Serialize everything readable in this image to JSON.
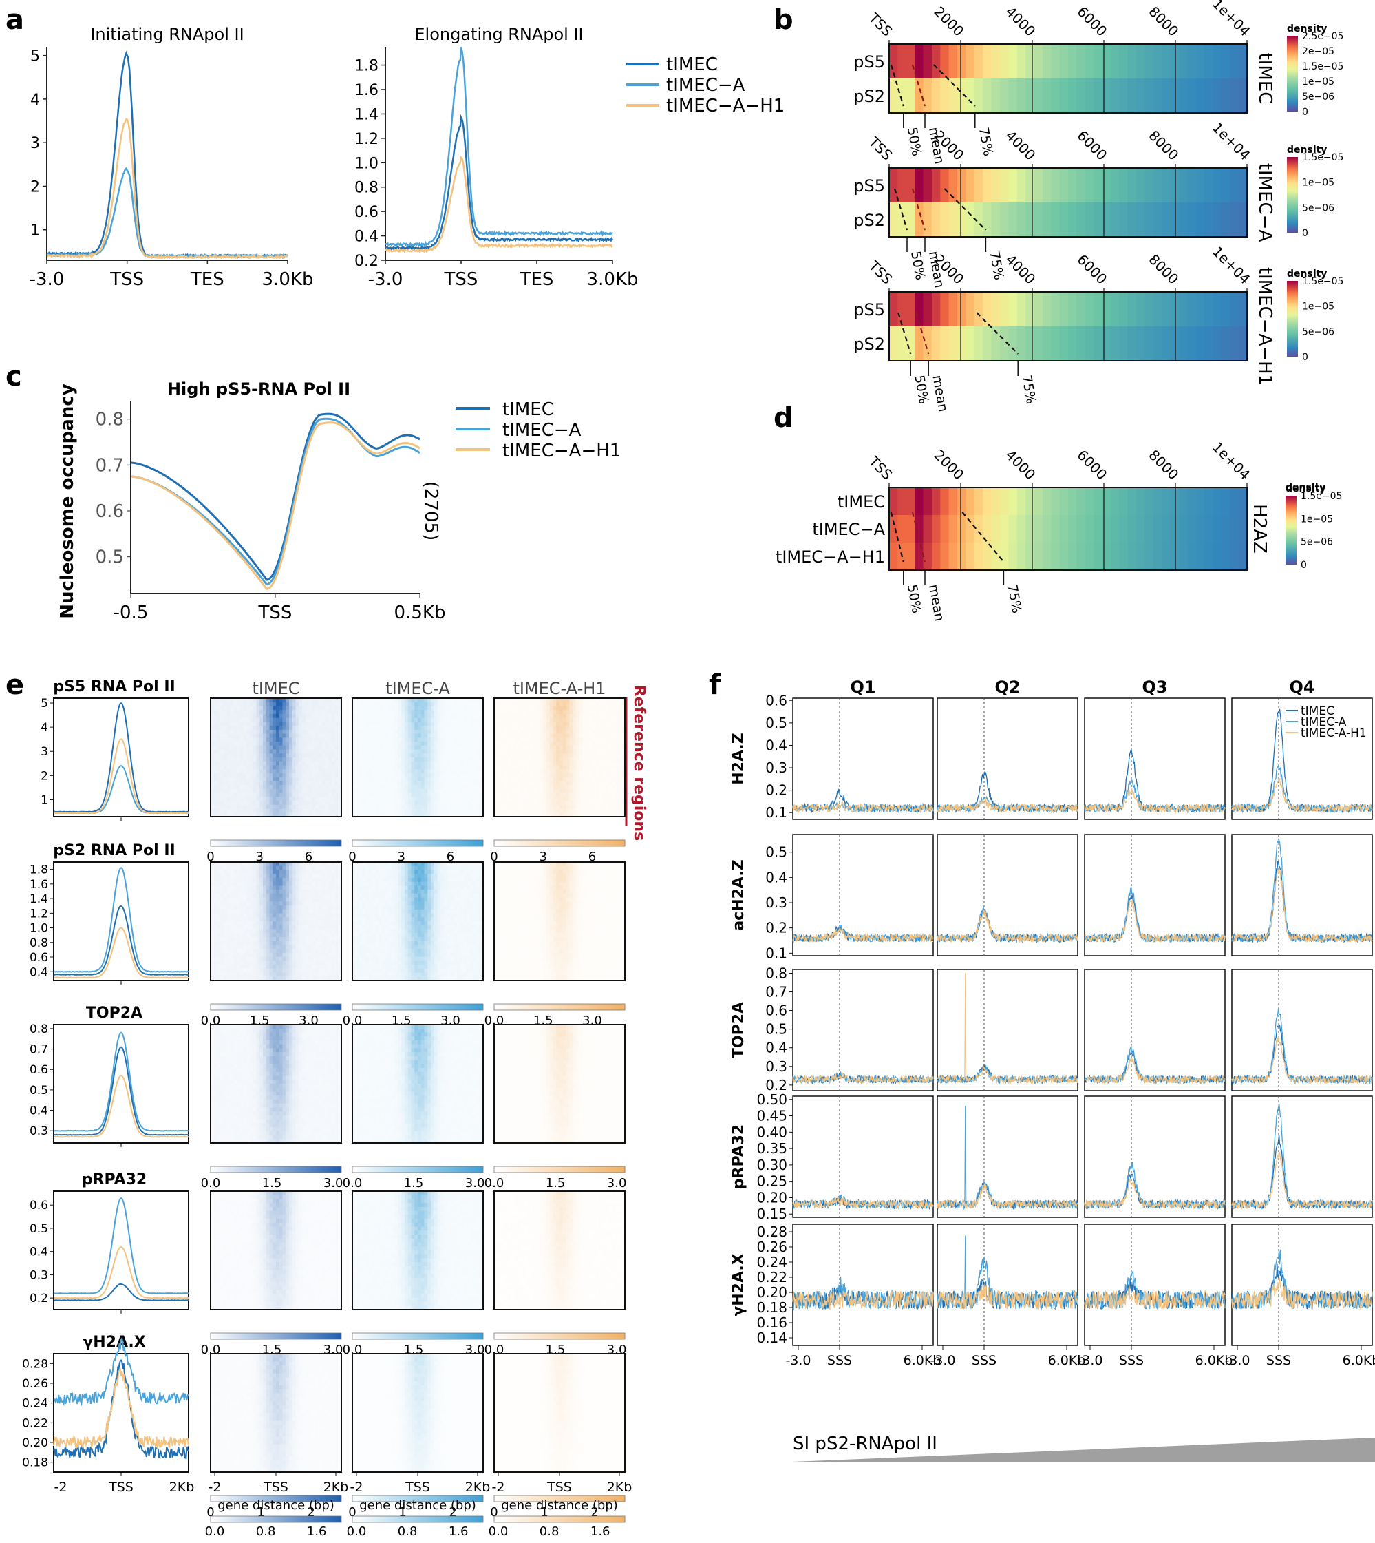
{
  "colors": {
    "tIMEC": "#1f6fb4",
    "tIMEC-A": "#4aa3d8",
    "tIMEC-A-H1": "#f5c27e",
    "reference_red": "#b2182b"
  },
  "legend": [
    "tIMEC",
    "tIMEC−A",
    "tIMEC−A−H1"
  ],
  "legend_f": [
    "tIMEC",
    "tIMEC-A",
    "tIMEC-A-H1"
  ],
  "panel_labels": {
    "a": "a",
    "b": "b",
    "c": "c",
    "d": "d",
    "e": "e",
    "f": "f"
  },
  "panel_a": {
    "xticks": [
      "-3.0",
      "TSS",
      "TES",
      "3.0Kb"
    ],
    "plots": [
      {
        "title": "Initiating RNApol II",
        "ylim": [
          0.3,
          5.2
        ],
        "yticks": [
          1,
          2,
          3,
          4,
          5
        ],
        "peaks": [
          5.05,
          2.4,
          3.55
        ],
        "base": [
          0.45,
          0.42,
          0.4
        ],
        "after": [
          0.4,
          0.4,
          0.38
        ]
      },
      {
        "title": "Elongating RNApol II",
        "ylim": [
          0.2,
          1.95
        ],
        "yticks": [
          0.2,
          0.4,
          0.6,
          0.8,
          1.0,
          1.2,
          1.4,
          1.6,
          1.8
        ],
        "peaks": [
          1.3,
          1.85,
          1.0
        ],
        "base": [
          0.3,
          0.33,
          0.28
        ],
        "after": [
          0.37,
          0.42,
          0.32
        ]
      }
    ]
  },
  "panel_b": {
    "xticks": [
      "TSS",
      "2000",
      "4000",
      "6000",
      "8000",
      "1e+04"
    ],
    "row_labels": [
      "pS5",
      "pS2"
    ],
    "pct_labels": [
      "50%",
      "mean",
      "75%"
    ],
    "legend_title": "density",
    "heatmaps": [
      {
        "side_label": "tIMEC",
        "cbar_ticks": [
          "2.5e−05",
          "2e−05",
          "1.5e−05",
          "1e−05",
          "5e−06",
          "0"
        ],
        "pct_x": [
          400,
          1000,
          2400
        ]
      },
      {
        "side_label": "tIMEC−A",
        "cbar_ticks": [
          "1.5e−05",
          "1e−05",
          "5e−06",
          "0"
        ],
        "pct_x": [
          500,
          1000,
          2700
        ]
      },
      {
        "side_label": "tIMEC−A−H1",
        "cbar_ticks": [
          "1.5e−05",
          "1e−05",
          "5e−06",
          "0"
        ],
        "pct_x": [
          600,
          1100,
          3600
        ]
      }
    ]
  },
  "panel_c": {
    "title": "High pS5-RNA Pol II",
    "ylabel": "Nucleosome occupancy",
    "xticks": [
      "-0.5",
      "TSS",
      "0.5Kb"
    ],
    "yticks": [
      "0.5",
      "0.6",
      "0.7",
      "0.8"
    ],
    "side_note": "(2705)"
  },
  "panel_d": {
    "xticks": [
      "TSS",
      "2000",
      "4000",
      "6000",
      "8000",
      "1e+04"
    ],
    "row_labels": [
      "tIMEC",
      "tIMEC−A",
      "tIMEC−A−H1"
    ],
    "pct_labels": [
      "50%",
      "mean",
      "75%"
    ],
    "legend_title": "density",
    "cbar_ticks": [
      "1.5e−05",
      "1e−05",
      "5e−06",
      "0"
    ],
    "side_label": "H2AZ"
  },
  "panel_e": {
    "col_titles": [
      "tIMEC",
      "tIMEC-A",
      "tIMEC-A-H1"
    ],
    "reference_label": "Reference regions",
    "xticks_profile": [
      "-2",
      "TSS",
      "2Kb"
    ],
    "xticks_heat": [
      "-2",
      "TSS",
      "2Kb"
    ],
    "gene_distance": "gene distance (bp)",
    "rows": [
      {
        "title": "pS5 RNA Pol II",
        "yticks": [
          "1",
          "2",
          "3",
          "4",
          "5"
        ],
        "ylim": [
          0.3,
          5.2
        ],
        "cbar_ticks": [
          "0",
          "3",
          "6"
        ],
        "cbar_max": 8,
        "peaks": [
          5.0,
          2.4,
          3.5
        ],
        "base": [
          0.5,
          0.45,
          0.45
        ],
        "intensity": [
          1.0,
          0.55,
          0.6
        ]
      },
      {
        "title": "pS2 RNA Pol II",
        "yticks": [
          "0.4",
          "0.6",
          "0.8",
          "1.0",
          "1.2",
          "1.4",
          "1.6",
          "1.8"
        ],
        "ylim": [
          0.28,
          1.9
        ],
        "cbar_ticks": [
          "0.0",
          "1.5",
          "3.0"
        ],
        "cbar_max": 4,
        "peaks": [
          1.3,
          1.82,
          1.0
        ],
        "base": [
          0.36,
          0.4,
          0.32
        ],
        "intensity": [
          0.7,
          0.85,
          0.35
        ]
      },
      {
        "title": "TOP2A",
        "yticks": [
          "0.3",
          "0.4",
          "0.5",
          "0.6",
          "0.7",
          "0.8"
        ],
        "ylim": [
          0.24,
          0.82
        ],
        "cbar_ticks": [
          "0.0",
          "1.5",
          "3.0"
        ],
        "cbar_max": 3.2,
        "peaks": [
          0.71,
          0.78,
          0.57
        ],
        "base": [
          0.28,
          0.3,
          0.27
        ],
        "intensity": [
          0.55,
          0.6,
          0.3
        ]
      },
      {
        "title": "pRPA32",
        "yticks": [
          "0.2",
          "0.3",
          "0.4",
          "0.5",
          "0.6"
        ],
        "ylim": [
          0.15,
          0.66
        ],
        "cbar_ticks": [
          "0.0",
          "1.5",
          "3.0"
        ],
        "cbar_max": 3.2,
        "peaks": [
          0.26,
          0.63,
          0.42
        ],
        "base": [
          0.19,
          0.22,
          0.2
        ],
        "intensity": [
          0.35,
          0.6,
          0.25
        ]
      },
      {
        "title": "γH2A.X",
        "yticks": [
          "0.18",
          "0.20",
          "0.22",
          "0.24",
          "0.26",
          "0.28"
        ],
        "ylim": [
          0.17,
          0.29
        ],
        "cbar_ticks": [
          "0",
          "1",
          "2"
        ],
        "cbar_max": 2.6,
        "peaks": [
          0.28,
          0.28,
          0.27
        ],
        "base": [
          0.19,
          0.225,
          0.2
        ],
        "intensity": [
          0.3,
          0.25,
          0.15
        ]
      }
    ],
    "last_cbar_ticks": [
      "0.0",
      "0.8",
      "1.6"
    ]
  },
  "panel_f": {
    "quartiles": [
      "Q1",
      "Q2",
      "Q3",
      "Q4"
    ],
    "xticks": [
      "-3.0",
      "SSS",
      "6.0Kb"
    ],
    "xlabel": "SI pS2-RNApol II",
    "rows": [
      {
        "label": "H2A.Z",
        "yticks": [
          "0.1",
          "0.2",
          "0.3",
          "0.4",
          "0.5",
          "0.6"
        ],
        "ylim": [
          0.07,
          0.61
        ],
        "base": 0.12,
        "peaks": [
          [
            0.19,
            0.13,
            0.13
          ],
          [
            0.27,
            0.16,
            0.15
          ],
          [
            0.37,
            0.24,
            0.2
          ],
          [
            0.56,
            0.3,
            0.25
          ]
        ]
      },
      {
        "label": "acH2A.Z",
        "yticks": [
          "0.1",
          "0.2",
          "0.3",
          "0.4",
          "0.5"
        ],
        "ylim": [
          0.09,
          0.57
        ],
        "base": 0.16,
        "peaks": [
          [
            0.2,
            0.2,
            0.19
          ],
          [
            0.27,
            0.28,
            0.26
          ],
          [
            0.33,
            0.35,
            0.3
          ],
          [
            0.46,
            0.55,
            0.43
          ]
        ]
      },
      {
        "label": "TOP2A",
        "yticks": [
          "0.2",
          "0.3",
          "0.4",
          "0.5",
          "0.6",
          "0.7",
          "0.8"
        ],
        "ylim": [
          0.17,
          0.82
        ],
        "base": 0.23,
        "peaks": [
          [
            0.25,
            0.26,
            0.25
          ],
          [
            0.3,
            0.29,
            0.28
          ],
          [
            0.37,
            0.39,
            0.33
          ],
          [
            0.52,
            0.6,
            0.45
          ]
        ]
      },
      {
        "label": "pRPA32",
        "yticks": [
          "0.15",
          "0.20",
          "0.25",
          "0.30",
          "0.35",
          "0.40",
          "0.45",
          "0.50"
        ],
        "ylim": [
          0.14,
          0.51
        ],
        "base": 0.18,
        "peaks": [
          [
            0.19,
            0.2,
            0.19
          ],
          [
            0.24,
            0.25,
            0.23
          ],
          [
            0.27,
            0.3,
            0.25
          ],
          [
            0.38,
            0.48,
            0.33
          ]
        ]
      },
      {
        "label": "γH2A.X",
        "yticks": [
          "0.14",
          "0.16",
          "0.18",
          "0.20",
          "0.22",
          "0.24",
          "0.26",
          "0.28"
        ],
        "ylim": [
          0.13,
          0.29
        ],
        "base": 0.19,
        "peaks": [
          [
            0.2,
            0.21,
            0.19
          ],
          [
            0.21,
            0.24,
            0.2
          ],
          [
            0.21,
            0.22,
            0.2
          ],
          [
            0.23,
            0.25,
            0.21
          ]
        ]
      }
    ]
  },
  "chart_data": [
    {
      "type": "line",
      "title": "Initiating RNApol II",
      "x": [
        "-3.0",
        "TSS",
        "TES",
        "3.0Kb"
      ],
      "series": [
        {
          "name": "tIMEC",
          "peak": 5.05
        },
        {
          "name": "tIMEC−A",
          "peak": 2.4
        },
        {
          "name": "tIMEC−A−H1",
          "peak": 3.55
        }
      ]
    },
    {
      "type": "line",
      "title": "Elongating RNApol II",
      "x": [
        "-3.0",
        "TSS",
        "TES",
        "3.0Kb"
      ],
      "series": [
        {
          "name": "tIMEC",
          "peak": 1.3
        },
        {
          "name": "tIMEC−A",
          "peak": 1.85
        },
        {
          "name": "tIMEC−A−H1",
          "peak": 1.0
        }
      ]
    },
    {
      "type": "heatmap",
      "rows": [
        "pS5",
        "pS2"
      ],
      "x": [
        "TSS",
        "2000",
        "4000",
        "6000",
        "8000",
        "1e+04"
      ]
    },
    {
      "type": "line",
      "title": "High pS5-RNA Pol II",
      "ylabel": "Nucleosome occupancy",
      "x": [
        "-0.5",
        "TSS",
        "0.5Kb"
      ],
      "series": [
        {
          "name": "tIMEC",
          "min": 0.45,
          "max": 0.81
        },
        {
          "name": "tIMEC−A",
          "min": 0.44,
          "max": 0.8
        },
        {
          "name": "tIMEC−A−H1",
          "min": 0.43,
          "max": 0.79
        }
      ]
    },
    {
      "type": "heatmap",
      "rows": [
        "tIMEC",
        "tIMEC−A",
        "tIMEC−A−H1"
      ],
      "x": [
        "TSS",
        "2000",
        "4000",
        "6000",
        "8000",
        "1e+04"
      ]
    },
    {
      "type": "line",
      "rows": [
        "pS5 RNA Pol II",
        "pS2 RNA Pol II",
        "TOP2A",
        "pRPA32",
        "γH2A.X"
      ]
    },
    {
      "type": "line",
      "quartiles": [
        "Q1",
        "Q2",
        "Q3",
        "Q4"
      ],
      "rows": [
        "H2A.Z",
        "acH2A.Z",
        "TOP2A",
        "pRPA32",
        "γH2A.X"
      ]
    }
  ]
}
